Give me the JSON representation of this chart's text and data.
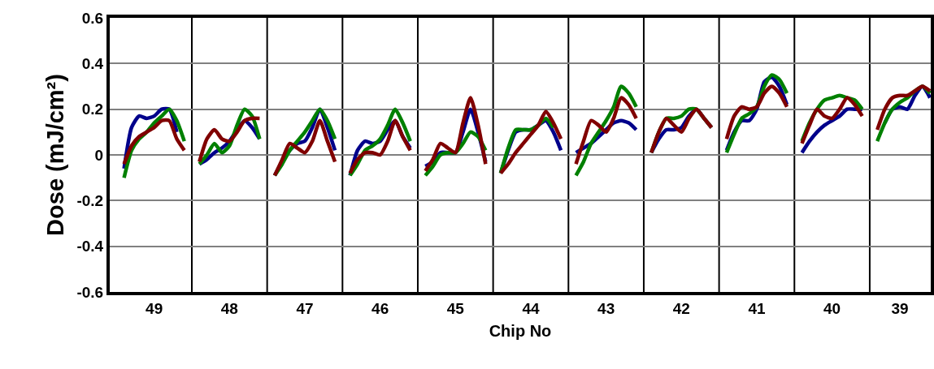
{
  "chart_data": {
    "type": "line",
    "xlabel": "Chip No",
    "ylabel": "Dose (mJ/cm²)",
    "categories": [
      null,
      null,
      null,
      null,
      "49",
      null,
      null,
      null,
      null,
      null,
      null,
      null,
      null,
      null,
      "48",
      null,
      null,
      null,
      null,
      null,
      null,
      null,
      null,
      null,
      "47",
      null,
      null,
      null,
      null,
      null,
      null,
      null,
      null,
      null,
      "46",
      null,
      null,
      null,
      null,
      null,
      null,
      null,
      null,
      null,
      "45",
      null,
      null,
      null,
      null,
      null,
      null,
      null,
      null,
      null,
      "44",
      null,
      null,
      null,
      null,
      null,
      null,
      null,
      null,
      null,
      "43",
      null,
      null,
      null,
      null,
      null,
      null,
      null,
      null,
      null,
      "42",
      null,
      null,
      null,
      null,
      null,
      null,
      null,
      null,
      null,
      "41",
      null,
      null,
      null,
      null,
      null,
      null,
      null,
      null,
      null,
      "40",
      null,
      null,
      null,
      null,
      null,
      null,
      null,
      null,
      "39",
      null,
      null,
      null,
      null
    ],
    "series": [
      {
        "color": "#00008b",
        "values": [
          -0.06,
          0.12,
          0.17,
          0.16,
          0.17,
          0.2,
          0.2,
          0.1,
          null,
          null,
          -0.04,
          -0.02,
          0.01,
          0.03,
          0.06,
          0.11,
          0.15,
          0.12,
          0.07,
          null,
          -0.09,
          -0.03,
          0.02,
          0.05,
          0.06,
          0.12,
          0.2,
          0.12,
          0.02,
          null,
          -0.09,
          0.02,
          0.06,
          0.05,
          0.06,
          0.11,
          0.15,
          0.08,
          0.03,
          null,
          -0.05,
          -0.03,
          0.01,
          0.01,
          0.01,
          0.1,
          0.2,
          0.1,
          -0.03,
          null,
          -0.08,
          0.02,
          0.1,
          0.11,
          0.11,
          0.13,
          0.15,
          0.1,
          0.02,
          null,
          0.01,
          0.03,
          0.05,
          0.08,
          0.11,
          0.14,
          0.15,
          0.14,
          0.11,
          null,
          0.01,
          0.07,
          0.11,
          0.11,
          0.12,
          0.17,
          0.2,
          0.16,
          0.12,
          null,
          0.02,
          0.1,
          0.15,
          0.15,
          0.2,
          0.32,
          0.34,
          0.3,
          0.22,
          null,
          0.01,
          0.06,
          0.1,
          0.13,
          0.15,
          0.17,
          0.2,
          0.2,
          0.2,
          null,
          null,
          0.14,
          0.2,
          0.21,
          0.2,
          0.26,
          0.3,
          0.25
        ]
      },
      {
        "color": "#008000",
        "values": [
          -0.1,
          0.02,
          0.07,
          0.1,
          0.14,
          0.17,
          0.2,
          0.15,
          0.06,
          null,
          -0.04,
          0,
          0.05,
          0.01,
          0.04,
          0.13,
          0.2,
          0.17,
          0.07,
          null,
          -0.09,
          -0.04,
          0.02,
          0.06,
          0.1,
          0.15,
          0.2,
          0.15,
          0.07,
          null,
          -0.09,
          -0.04,
          0.02,
          0.04,
          0.07,
          0.13,
          0.2,
          0.14,
          0.06,
          null,
          -0.09,
          -0.05,
          0,
          0.01,
          0.01,
          0.05,
          0.1,
          0.08,
          0.02,
          null,
          -0.08,
          0.03,
          0.11,
          0.11,
          0.11,
          0.13,
          0.16,
          0.12,
          null,
          null,
          -0.09,
          -0.03,
          0.05,
          0.1,
          0.15,
          0.21,
          0.3,
          0.27,
          0.21,
          null,
          0.01,
          0.1,
          0.16,
          0.16,
          0.17,
          0.2,
          0.2,
          0.16,
          0.12,
          null,
          0.01,
          0.09,
          0.16,
          0.18,
          0.21,
          0.3,
          0.35,
          0.33,
          0.27,
          null,
          0.06,
          0.14,
          0.2,
          0.24,
          0.25,
          0.26,
          0.25,
          0.24,
          0.2,
          null,
          0.06,
          0.14,
          0.2,
          0.23,
          0.25,
          0.28,
          0.3,
          0.27
        ]
      },
      {
        "color": "#800000",
        "values": [
          -0.04,
          0.04,
          0.08,
          0.1,
          0.12,
          0.15,
          0.15,
          0.07,
          0.02,
          null,
          -0.03,
          0.07,
          0.11,
          0.07,
          0.06,
          0.1,
          0.15,
          0.16,
          0.16,
          null,
          -0.09,
          -0.02,
          0.05,
          0.03,
          0.01,
          0.06,
          0.15,
          0.06,
          -0.03,
          null,
          -0.08,
          -0.02,
          0.01,
          0.01,
          0,
          0.06,
          0.15,
          0.08,
          0.02,
          null,
          -0.07,
          -0.02,
          0.05,
          0.03,
          0.01,
          0.14,
          0.25,
          0.13,
          -0.04,
          null,
          -0.08,
          -0.04,
          0.01,
          0.05,
          0.09,
          0.13,
          0.19,
          0.14,
          0.07,
          null,
          -0.04,
          0.06,
          0.15,
          0.13,
          0.1,
          0.16,
          0.25,
          0.22,
          0.16,
          null,
          0.01,
          0.1,
          0.16,
          0.13,
          0.1,
          0.16,
          0.2,
          0.16,
          0.12,
          null,
          0.07,
          0.17,
          0.21,
          0.2,
          0.21,
          0.27,
          0.3,
          0.27,
          0.21,
          null,
          0.05,
          0.13,
          0.2,
          0.17,
          0.16,
          0.2,
          0.25,
          0.22,
          0.17,
          null,
          0.11,
          0.2,
          0.25,
          0.26,
          0.26,
          0.28,
          0.3,
          0.28
        ]
      }
    ],
    "ylim": [
      -0.6,
      0.6
    ],
    "yticks": [
      -0.6,
      -0.4,
      -0.2,
      0,
      0.2,
      0.4,
      0.6
    ],
    "grid": "y",
    "marker": "none",
    "line_style": "solid"
  }
}
